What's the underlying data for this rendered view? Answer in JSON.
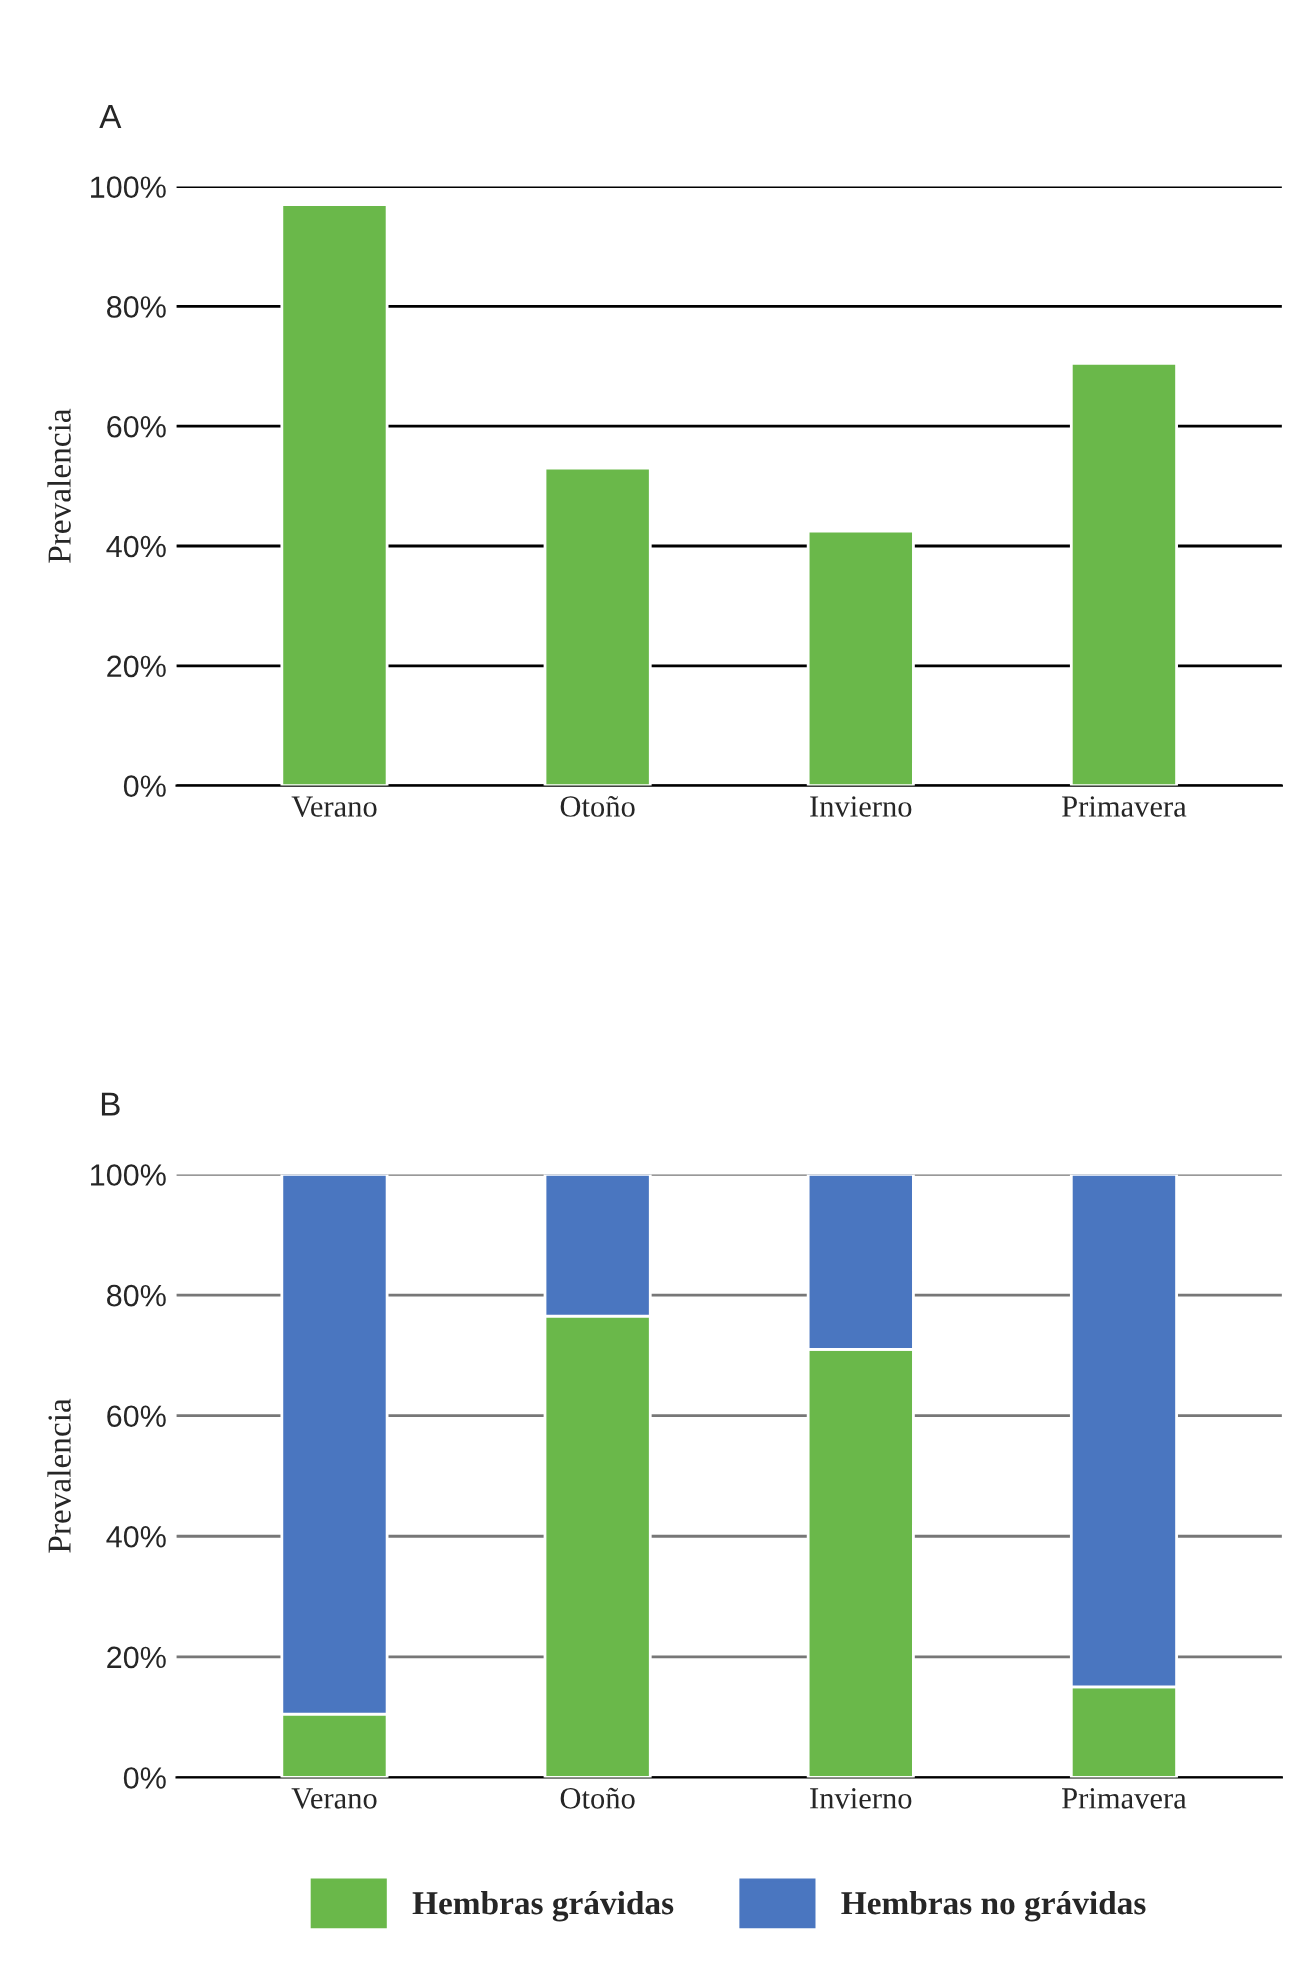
{
  "chart_data": [
    {
      "type": "bar",
      "title": "A",
      "ylabel": "Prevalencia",
      "categories": [
        "Verano",
        "Otoño",
        "Invierno",
        "Primavera"
      ],
      "series": [
        {
          "color": "#6ab84a",
          "values": [
            97,
            53,
            42.5,
            70.5
          ]
        }
      ],
      "ylim": [
        0,
        100
      ],
      "yticks": [
        {
          "value": 0,
          "label": "0%"
        },
        {
          "value": 20,
          "label": "20%"
        },
        {
          "value": 40,
          "label": "40%"
        },
        {
          "value": 60,
          "label": "60%"
        },
        {
          "value": 80,
          "label": "80%"
        },
        {
          "value": 100,
          "label": "100%"
        }
      ],
      "grid": "y"
    },
    {
      "type": "bar",
      "title": "B",
      "ylabel": "Prevalencia",
      "categories": [
        "Verano",
        "Otoño",
        "Invierno",
        "Primavera"
      ],
      "stacked": true,
      "series": [
        {
          "name": "Hembras grávidas",
          "color": "#6ab84a",
          "values": [
            10.5,
            76.5,
            71,
            15
          ]
        },
        {
          "name": "Hembras no grávidas",
          "color": "#4a76c0",
          "values": [
            89.5,
            23.5,
            29,
            85
          ]
        }
      ],
      "ylim": [
        0,
        100
      ],
      "yticks": [
        {
          "value": 0,
          "label": "0%"
        },
        {
          "value": 20,
          "label": "20%"
        },
        {
          "value": 40,
          "label": "40%"
        },
        {
          "value": 60,
          "label": "60%"
        },
        {
          "value": 80,
          "label": "80%"
        },
        {
          "value": 100,
          "label": "100%"
        }
      ],
      "grid": "y",
      "legend": "bottom"
    }
  ]
}
